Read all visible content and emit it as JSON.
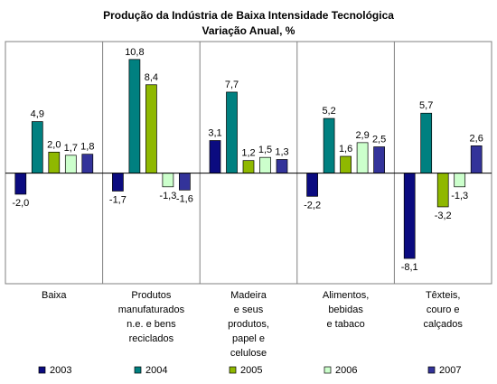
{
  "chart_data": {
    "type": "bar",
    "title": "Produção da Indústria de Baixa Intensidade Tecnológica",
    "subtitle": "Variação Anual, %",
    "categories": [
      [
        "Baixa"
      ],
      [
        "Produtos",
        "manufaturados",
        "n.e. e bens",
        "reciclados"
      ],
      [
        "Madeira",
        "e seus",
        "produtos,",
        "papel e",
        "celulose"
      ],
      [
        "Alimentos,",
        "bebidas",
        "e tabaco"
      ],
      [
        "Têxteis,",
        "couro e",
        "calçados"
      ]
    ],
    "series": [
      {
        "name": "2003",
        "color": "#0b0b80",
        "values": [
          -2.0,
          -1.7,
          3.1,
          -2.2,
          -8.1
        ],
        "labels": [
          "-2,0",
          "-1,7",
          "3,1",
          "-2,2",
          "-8,1"
        ]
      },
      {
        "name": "2004",
        "color": "#008080",
        "values": [
          4.9,
          10.8,
          7.7,
          5.2,
          5.7
        ],
        "labels": [
          "4,9",
          "10,8",
          "7,7",
          "5,2",
          "5,7"
        ]
      },
      {
        "name": "2005",
        "color": "#8fb800",
        "values": [
          2.0,
          8.4,
          1.2,
          1.6,
          -3.2
        ],
        "labels": [
          "2,0",
          "8,4",
          "1,2",
          "1,6",
          "-3,2"
        ]
      },
      {
        "name": "2006",
        "color": "#ccffcc",
        "values": [
          1.7,
          -1.3,
          1.5,
          2.9,
          -1.3
        ],
        "labels": [
          "1,7",
          "-1,3",
          "1,5",
          "2,9",
          "-1,3"
        ]
      },
      {
        "name": "2007",
        "color": "#33339a",
        "values": [
          1.8,
          -1.6,
          1.3,
          2.5,
          2.6
        ],
        "labels": [
          "1,8",
          "-1,6",
          "1,3",
          "2,5",
          "2,6"
        ]
      }
    ],
    "ylim": [
      -10.5,
      12.5
    ],
    "grid": false,
    "legend": "bottom"
  }
}
